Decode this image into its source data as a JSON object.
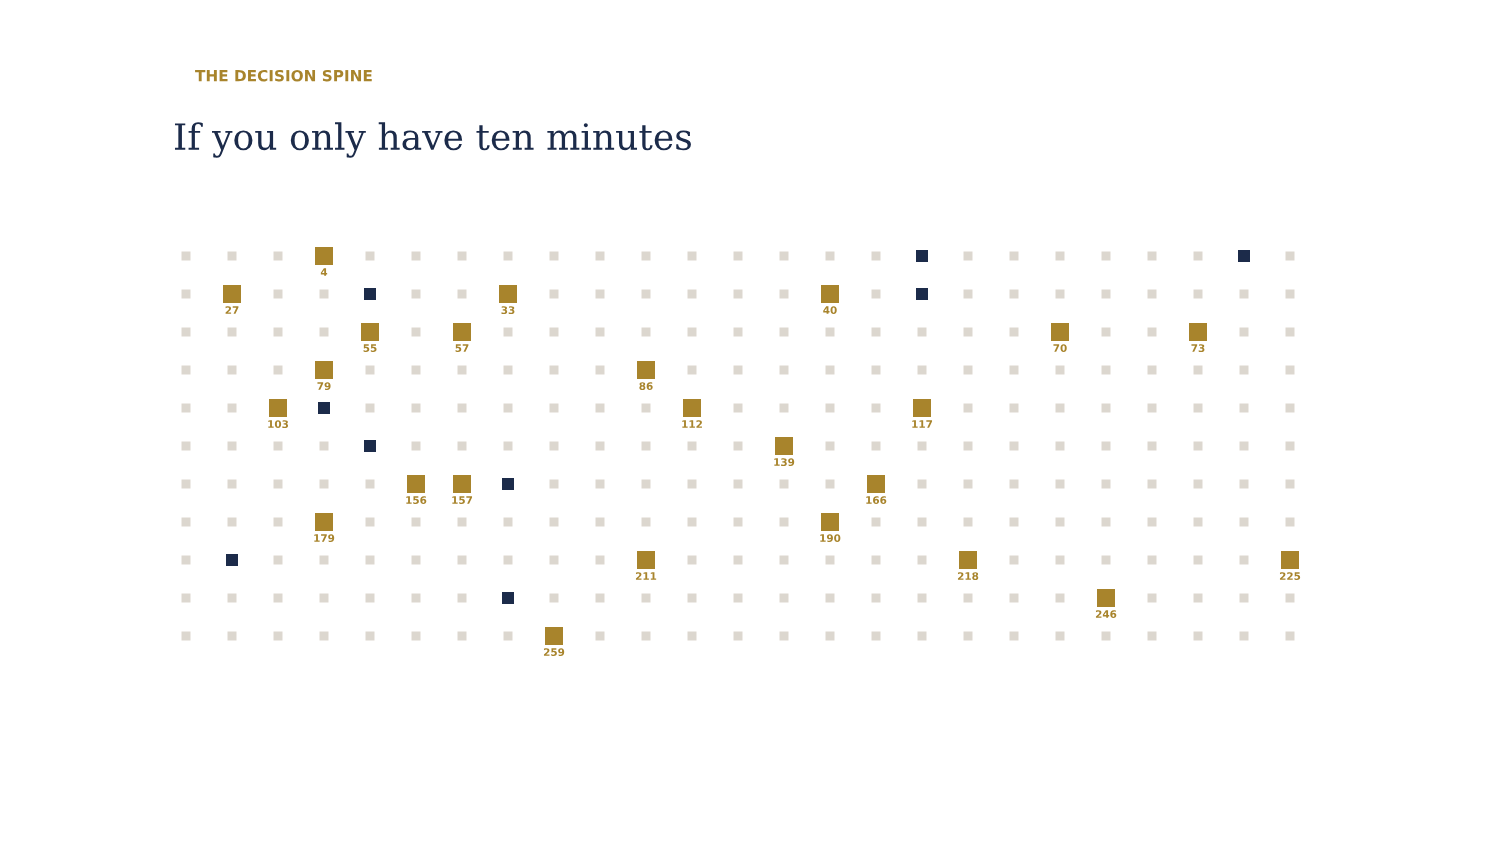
{
  "chart_data": {
    "type": "heatmap",
    "subtitle": "THE DECISION SPINE",
    "title": "If you only have ten minutes",
    "categories": [
      null,
      null,
      null,
      null,
      null,
      null,
      null,
      null,
      null,
      null,
      null,
      null,
      null,
      null,
      null,
      null,
      null,
      null,
      null,
      null,
      null,
      null,
      null,
      null,
      null
    ],
    "y_categories": [
      null,
      null,
      null,
      null,
      null,
      null,
      null,
      null,
      null,
      null,
      null
    ],
    "data_labels": true,
    "cells": [
      [
        null,
        null,
        null,
        4,
        null,
        null,
        null,
        null,
        null,
        null,
        null,
        null,
        null,
        null,
        null,
        null,
        null,
        null,
        null,
        null,
        null,
        null,
        null,
        null,
        null
      ],
      [
        null,
        27,
        null,
        null,
        null,
        null,
        null,
        33,
        null,
        null,
        null,
        null,
        null,
        null,
        40,
        null,
        null,
        null,
        null,
        null,
        null,
        null,
        null,
        null,
        null
      ],
      [
        null,
        null,
        null,
        null,
        55,
        null,
        57,
        null,
        null,
        null,
        null,
        null,
        null,
        null,
        null,
        null,
        null,
        null,
        null,
        70,
        null,
        null,
        73,
        null,
        null
      ],
      [
        null,
        null,
        null,
        79,
        null,
        null,
        null,
        null,
        null,
        null,
        86,
        null,
        null,
        null,
        null,
        null,
        null,
        null,
        null,
        null,
        null,
        null,
        null,
        null,
        null
      ],
      [
        null,
        null,
        103,
        null,
        null,
        null,
        null,
        null,
        null,
        null,
        null,
        112,
        null,
        null,
        null,
        null,
        117,
        null,
        null,
        null,
        null,
        null,
        null,
        null,
        null
      ],
      [
        null,
        null,
        null,
        null,
        null,
        null,
        null,
        null,
        null,
        null,
        null,
        null,
        null,
        139,
        null,
        null,
        null,
        null,
        null,
        null,
        null,
        null,
        null,
        null,
        null
      ],
      [
        null,
        null,
        null,
        null,
        null,
        156,
        157,
        null,
        null,
        null,
        null,
        null,
        null,
        null,
        null,
        166,
        null,
        null,
        null,
        null,
        null,
        null,
        null,
        null,
        null
      ],
      [
        null,
        null,
        null,
        179,
        null,
        null,
        null,
        null,
        null,
        null,
        null,
        null,
        null,
        null,
        190,
        null,
        null,
        null,
        null,
        null,
        null,
        null,
        null,
        null,
        null
      ],
      [
        null,
        null,
        null,
        null,
        null,
        null,
        null,
        null,
        null,
        null,
        211,
        null,
        null,
        null,
        null,
        null,
        null,
        218,
        null,
        null,
        null,
        null,
        null,
        null,
        225
      ],
      [
        null,
        null,
        null,
        null,
        null,
        null,
        null,
        null,
        null,
        null,
        null,
        null,
        null,
        null,
        null,
        null,
        null,
        null,
        null,
        null,
        246,
        null,
        null,
        null,
        null
      ],
      [
        null,
        null,
        null,
        null,
        null,
        null,
        null,
        null,
        259,
        null,
        null,
        null,
        null,
        null,
        null,
        null,
        null,
        null,
        null,
        null,
        null,
        null,
        null,
        null,
        null
      ]
    ],
    "colors": [
      [
        "#dcd7cf",
        "#dcd7cf",
        "#dcd7cf",
        "#a8842c",
        "#dcd7cf",
        "#dcd7cf",
        "#dcd7cf",
        "#dcd7cf",
        "#dcd7cf",
        "#dcd7cf",
        "#dcd7cf",
        "#dcd7cf",
        "#dcd7cf",
        "#dcd7cf",
        "#dcd7cf",
        "#dcd7cf",
        "#1c2b4a",
        "#dcd7cf",
        "#dcd7cf",
        "#dcd7cf",
        "#dcd7cf",
        "#dcd7cf",
        "#dcd7cf",
        "#1c2b4a",
        "#dcd7cf"
      ],
      [
        "#dcd7cf",
        "#a8842c",
        "#dcd7cf",
        "#dcd7cf",
        "#1c2b4a",
        "#dcd7cf",
        "#dcd7cf",
        "#a8842c",
        "#dcd7cf",
        "#dcd7cf",
        "#dcd7cf",
        "#dcd7cf",
        "#dcd7cf",
        "#dcd7cf",
        "#a8842c",
        "#dcd7cf",
        "#1c2b4a",
        "#dcd7cf",
        "#dcd7cf",
        "#dcd7cf",
        "#dcd7cf",
        "#dcd7cf",
        "#dcd7cf",
        "#dcd7cf",
        "#dcd7cf"
      ],
      [
        "#dcd7cf",
        "#dcd7cf",
        "#dcd7cf",
        "#dcd7cf",
        "#a8842c",
        "#dcd7cf",
        "#a8842c",
        "#dcd7cf",
        "#dcd7cf",
        "#dcd7cf",
        "#dcd7cf",
        "#dcd7cf",
        "#dcd7cf",
        "#dcd7cf",
        "#dcd7cf",
        "#dcd7cf",
        "#dcd7cf",
        "#dcd7cf",
        "#dcd7cf",
        "#a8842c",
        "#dcd7cf",
        "#dcd7cf",
        "#a8842c",
        "#dcd7cf",
        "#dcd7cf"
      ],
      [
        "#dcd7cf",
        "#dcd7cf",
        "#dcd7cf",
        "#a8842c",
        "#dcd7cf",
        "#dcd7cf",
        "#dcd7cf",
        "#dcd7cf",
        "#dcd7cf",
        "#dcd7cf",
        "#a8842c",
        "#dcd7cf",
        "#dcd7cf",
        "#dcd7cf",
        "#dcd7cf",
        "#dcd7cf",
        "#dcd7cf",
        "#dcd7cf",
        "#dcd7cf",
        "#dcd7cf",
        "#dcd7cf",
        "#dcd7cf",
        "#dcd7cf",
        "#dcd7cf",
        "#dcd7cf"
      ],
      [
        "#dcd7cf",
        "#dcd7cf",
        "#a8842c",
        "#1c2b4a",
        "#dcd7cf",
        "#dcd7cf",
        "#dcd7cf",
        "#dcd7cf",
        "#dcd7cf",
        "#dcd7cf",
        "#dcd7cf",
        "#a8842c",
        "#dcd7cf",
        "#dcd7cf",
        "#dcd7cf",
        "#dcd7cf",
        "#a8842c",
        "#dcd7cf",
        "#dcd7cf",
        "#dcd7cf",
        "#dcd7cf",
        "#dcd7cf",
        "#dcd7cf",
        "#dcd7cf",
        "#dcd7cf"
      ],
      [
        "#dcd7cf",
        "#dcd7cf",
        "#dcd7cf",
        "#dcd7cf",
        "#1c2b4a",
        "#dcd7cf",
        "#dcd7cf",
        "#dcd7cf",
        "#dcd7cf",
        "#dcd7cf",
        "#dcd7cf",
        "#dcd7cf",
        "#dcd7cf",
        "#a8842c",
        "#dcd7cf",
        "#dcd7cf",
        "#dcd7cf",
        "#dcd7cf",
        "#dcd7cf",
        "#dcd7cf",
        "#dcd7cf",
        "#dcd7cf",
        "#dcd7cf",
        "#dcd7cf",
        "#dcd7cf"
      ],
      [
        "#dcd7cf",
        "#dcd7cf",
        "#dcd7cf",
        "#dcd7cf",
        "#dcd7cf",
        "#a8842c",
        "#a8842c",
        "#1c2b4a",
        "#dcd7cf",
        "#dcd7cf",
        "#dcd7cf",
        "#dcd7cf",
        "#dcd7cf",
        "#dcd7cf",
        "#dcd7cf",
        "#a8842c",
        "#dcd7cf",
        "#dcd7cf",
        "#dcd7cf",
        "#dcd7cf",
        "#dcd7cf",
        "#dcd7cf",
        "#dcd7cf",
        "#dcd7cf",
        "#dcd7cf"
      ],
      [
        "#dcd7cf",
        "#dcd7cf",
        "#dcd7cf",
        "#a8842c",
        "#dcd7cf",
        "#dcd7cf",
        "#dcd7cf",
        "#dcd7cf",
        "#dcd7cf",
        "#dcd7cf",
        "#dcd7cf",
        "#dcd7cf",
        "#dcd7cf",
        "#dcd7cf",
        "#a8842c",
        "#dcd7cf",
        "#dcd7cf",
        "#dcd7cf",
        "#dcd7cf",
        "#dcd7cf",
        "#dcd7cf",
        "#dcd7cf",
        "#dcd7cf",
        "#dcd7cf",
        "#dcd7cf"
      ],
      [
        "#dcd7cf",
        "#1c2b4a",
        "#dcd7cf",
        "#dcd7cf",
        "#dcd7cf",
        "#dcd7cf",
        "#dcd7cf",
        "#dcd7cf",
        "#dcd7cf",
        "#dcd7cf",
        "#a8842c",
        "#dcd7cf",
        "#dcd7cf",
        "#dcd7cf",
        "#dcd7cf",
        "#dcd7cf",
        "#dcd7cf",
        "#a8842c",
        "#dcd7cf",
        "#dcd7cf",
        "#dcd7cf",
        "#dcd7cf",
        "#dcd7cf",
        "#dcd7cf",
        "#a8842c"
      ],
      [
        "#dcd7cf",
        "#dcd7cf",
        "#dcd7cf",
        "#dcd7cf",
        "#dcd7cf",
        "#dcd7cf",
        "#dcd7cf",
        "#1c2b4a",
        "#dcd7cf",
        "#dcd7cf",
        "#dcd7cf",
        "#dcd7cf",
        "#dcd7cf",
        "#dcd7cf",
        "#dcd7cf",
        "#dcd7cf",
        "#dcd7cf",
        "#dcd7cf",
        "#dcd7cf",
        "#dcd7cf",
        "#a8842c",
        "#dcd7cf",
        "#dcd7cf",
        "#dcd7cf",
        "#dcd7cf"
      ],
      [
        "#dcd7cf",
        "#dcd7cf",
        "#dcd7cf",
        "#dcd7cf",
        "#dcd7cf",
        "#dcd7cf",
        "#dcd7cf",
        "#dcd7cf",
        "#a8842c",
        "#dcd7cf",
        "#dcd7cf",
        "#dcd7cf",
        "#dcd7cf",
        "#dcd7cf",
        "#dcd7cf",
        "#dcd7cf",
        "#dcd7cf",
        "#dcd7cf",
        "#dcd7cf",
        "#dcd7cf",
        "#dcd7cf",
        "#dcd7cf",
        "#dcd7cf",
        "#dcd7cf",
        "#dcd7cf"
      ]
    ]
  }
}
